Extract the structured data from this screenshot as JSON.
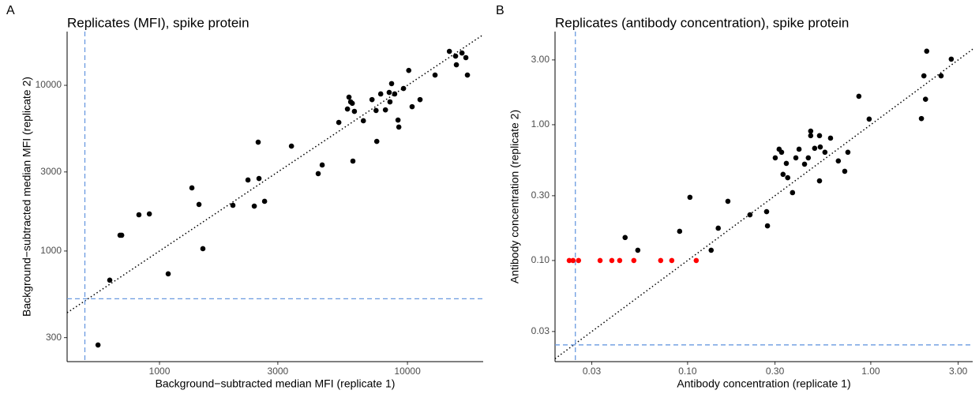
{
  "chart_data": [
    {
      "type": "scatter",
      "panel": "A",
      "title": "Replicates (MFI), spike protein",
      "xlabel": "Background−subtracted median MFI (replicate 1)",
      "ylabel": "Background−subtracted median MFI (replicate 2)",
      "log_scale": true,
      "identity_line": true,
      "cutoff_x": 500,
      "cutoff_y": 515,
      "cutoff_color": "#6a9ae0",
      "xlim": [
        424,
        20200
      ],
      "ylim": [
        215,
        21100
      ],
      "xticks": [
        1000,
        3000,
        10000
      ],
      "yticks": [
        300,
        1000,
        3000,
        10000
      ],
      "series": [
        {
          "color": "#000000",
          "x": [
            565,
            630,
            693,
            704,
            826,
            910,
            1084,
            1351,
            1443,
            1496,
            1977,
            2274,
            2411,
            2519,
            2500,
            2653,
            3405,
            4365,
            4530,
            5285,
            5728,
            5810,
            5900,
            5990,
            6025,
            6110,
            6640,
            7195,
            7470,
            7520,
            7800,
            8150,
            8440,
            8500,
            8630,
            8880,
            9160,
            9230,
            9640,
            10120,
            10440,
            11240,
            12920,
            14760,
            15630,
            15750,
            16590,
            17200,
            17450
          ],
          "values": [
            271,
            667,
            1245,
            1245,
            1655,
            1675,
            728,
            2404,
            1910,
            1033,
            1888,
            2683,
            1866,
            2740,
            4540,
            1995,
            4295,
            2930,
            3305,
            5970,
            7195,
            8485,
            7945,
            7790,
            3490,
            6965,
            6110,
            8200,
            7050,
            4590,
            8870,
            7110,
            9060,
            7945,
            10240,
            8870,
            6170,
            5600,
            9570,
            12300,
            7430,
            8200,
            11530,
            16030,
            15000,
            13300,
            15670,
            14690,
            11530
          ]
        }
      ]
    },
    {
      "type": "scatter",
      "panel": "B",
      "title": "Replicates (antibody concentration), spike protein",
      "xlabel": "Antibody concentration (replicate 1)",
      "ylabel": "Antibody concentration (replicate 2)",
      "log_scale": true,
      "identity_line": true,
      "cutoff_x": 0.0244,
      "cutoff_y": 0.0239,
      "cutoff_color": "#6a9ae0",
      "xlim": [
        0.0189,
        3.6
      ],
      "ylim": [
        0.018,
        4.85
      ],
      "xticks": [
        0.03,
        {
          "value": 0.1,
          "label": "0.10"
        },
        {
          "value": 0.3,
          "label": "0.30"
        },
        {
          "value": 1,
          "label": "1.00"
        },
        {
          "value": 3,
          "label": "3.00"
        }
      ],
      "yticks": [
        0.03,
        {
          "value": 0.1,
          "label": "0.10"
        },
        {
          "value": 0.3,
          "label": "0.30"
        },
        {
          "value": 1,
          "label": "1.00"
        },
        {
          "value": 3,
          "label": "3.00"
        }
      ],
      "series": [
        {
          "color": "#000000",
          "x": [
            0.0456,
            0.0535,
            0.0905,
            0.103,
            0.1345,
            0.147,
            0.166,
            0.219,
            0.27,
            0.273,
            0.301,
            0.316,
            0.326,
            0.332,
            0.346,
            0.352,
            0.374,
            0.39,
            0.406,
            0.435,
            0.456,
            0.47,
            0.47,
            0.494,
            0.525,
            0.525,
            0.53,
            0.562,
            0.603,
            0.665,
            0.721,
            0.75,
            0.861,
            0.98,
            1.95,
            1.99,
            2.42,
            1.89,
            2.02,
            2.75
          ],
          "values": [
            0.1476,
            0.119,
            0.164,
            0.292,
            0.119,
            0.173,
            0.273,
            0.217,
            0.229,
            0.18,
            0.57,
            0.66,
            0.627,
            0.431,
            0.519,
            0.407,
            0.316,
            0.57,
            0.66,
            0.512,
            0.57,
            0.897,
            0.83,
            0.67,
            0.386,
            0.83,
            0.685,
            0.627,
            0.796,
            0.541,
            0.454,
            0.627,
            1.62,
            1.1,
            2.29,
            1.54,
            2.29,
            1.11,
            3.48,
            3.04
          ]
        },
        {
          "color": "#ff0000",
          "x": [
            0.0226,
            0.0237,
            0.0254,
            0.0333,
            0.0386,
            0.0426,
            0.0509,
            0.0713,
            0.082,
            0.1115
          ],
          "values": [
            0.1,
            0.1,
            0.1,
            0.1,
            0.1,
            0.1,
            0.1,
            0.1,
            0.1,
            0.1
          ]
        }
      ]
    }
  ]
}
